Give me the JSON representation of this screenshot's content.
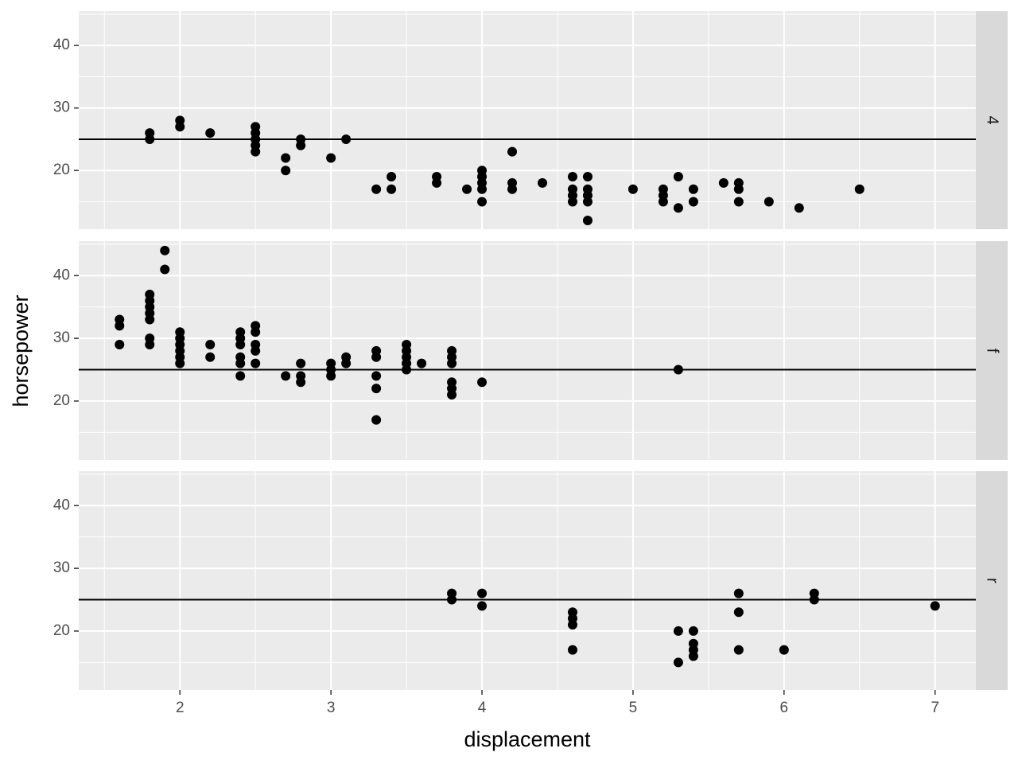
{
  "chart_data": {
    "type": "scatter",
    "xlabel": "displacement",
    "ylabel": "horsepower",
    "xlim": [
      1.33,
      7.27
    ],
    "ylim": [
      10.6,
      45.5
    ],
    "xticks": [
      2,
      3,
      4,
      5,
      6,
      7
    ],
    "yticks": [
      20,
      30,
      40
    ],
    "minor_xticks": [
      1.5,
      2.5,
      3.5,
      4.5,
      5.5,
      6.5
    ],
    "minor_yticks": [
      15,
      25,
      35,
      45
    ],
    "grid": true,
    "color": "#000000",
    "hline": 25,
    "facets": [
      {
        "label": "4",
        "x": [
          1.8,
          1.8,
          2.0,
          2.0,
          2.2,
          2.5,
          2.5,
          2.5,
          2.5,
          2.5,
          2.7,
          2.7,
          2.8,
          2.8,
          3.0,
          3.1,
          3.3,
          3.4,
          3.4,
          3.7,
          3.7,
          3.9,
          4.0,
          4.0,
          4.0,
          4.0,
          4.0,
          4.2,
          4.2,
          4.2,
          4.4,
          4.6,
          4.6,
          4.6,
          4.6,
          4.7,
          4.7,
          4.7,
          4.7,
          4.7,
          5.0,
          5.2,
          5.2,
          5.2,
          5.3,
          5.3,
          5.4,
          5.4,
          5.6,
          5.7,
          5.7,
          5.7,
          5.9,
          6.1,
          6.5
        ],
        "values": [
          26,
          25,
          28,
          27,
          26,
          27,
          26,
          25,
          24,
          23,
          22,
          20,
          25,
          24,
          22,
          25,
          17,
          19,
          17,
          19,
          18,
          17,
          20,
          19,
          18,
          17,
          15,
          23,
          18,
          17,
          18,
          19,
          17,
          16,
          15,
          19,
          17,
          16,
          15,
          12,
          17,
          17,
          16,
          15,
          19,
          14,
          17,
          15,
          18,
          18,
          17,
          15,
          15,
          14,
          17
        ]
      },
      {
        "label": "f",
        "x": [
          1.6,
          1.6,
          1.6,
          1.8,
          1.8,
          1.8,
          1.8,
          1.8,
          1.8,
          1.8,
          1.9,
          1.9,
          2.0,
          2.0,
          2.0,
          2.0,
          2.0,
          2.0,
          2.2,
          2.2,
          2.4,
          2.4,
          2.4,
          2.4,
          2.4,
          2.4,
          2.5,
          2.5,
          2.5,
          2.5,
          2.5,
          2.7,
          2.8,
          2.8,
          2.8,
          3.0,
          3.0,
          3.0,
          3.1,
          3.1,
          3.3,
          3.3,
          3.3,
          3.3,
          3.3,
          3.5,
          3.5,
          3.5,
          3.5,
          3.5,
          3.6,
          3.8,
          3.8,
          3.8,
          3.8,
          3.8,
          3.8,
          4.0,
          5.3
        ],
        "values": [
          33,
          32,
          29,
          37,
          36,
          35,
          34,
          33,
          30,
          29,
          44,
          41,
          31,
          30,
          29,
          28,
          27,
          26,
          29,
          27,
          31,
          30,
          29,
          27,
          26,
          24,
          32,
          31,
          29,
          28,
          26,
          24,
          26,
          24,
          23,
          26,
          25,
          24,
          27,
          26,
          28,
          27,
          24,
          22,
          17,
          29,
          28,
          27,
          26,
          25,
          26,
          28,
          27,
          26,
          23,
          22,
          21,
          23,
          25
        ]
      },
      {
        "label": "r",
        "x": [
          3.8,
          3.8,
          4.0,
          4.0,
          4.6,
          4.6,
          4.6,
          4.6,
          5.3,
          5.3,
          5.4,
          5.4,
          5.4,
          5.4,
          5.7,
          5.7,
          5.7,
          6.0,
          6.2,
          6.2,
          7.0
        ],
        "values": [
          26,
          25,
          26,
          24,
          23,
          22,
          21,
          17,
          20,
          15,
          20,
          18,
          17,
          16,
          26,
          23,
          17,
          17,
          26,
          25,
          24
        ]
      }
    ]
  }
}
